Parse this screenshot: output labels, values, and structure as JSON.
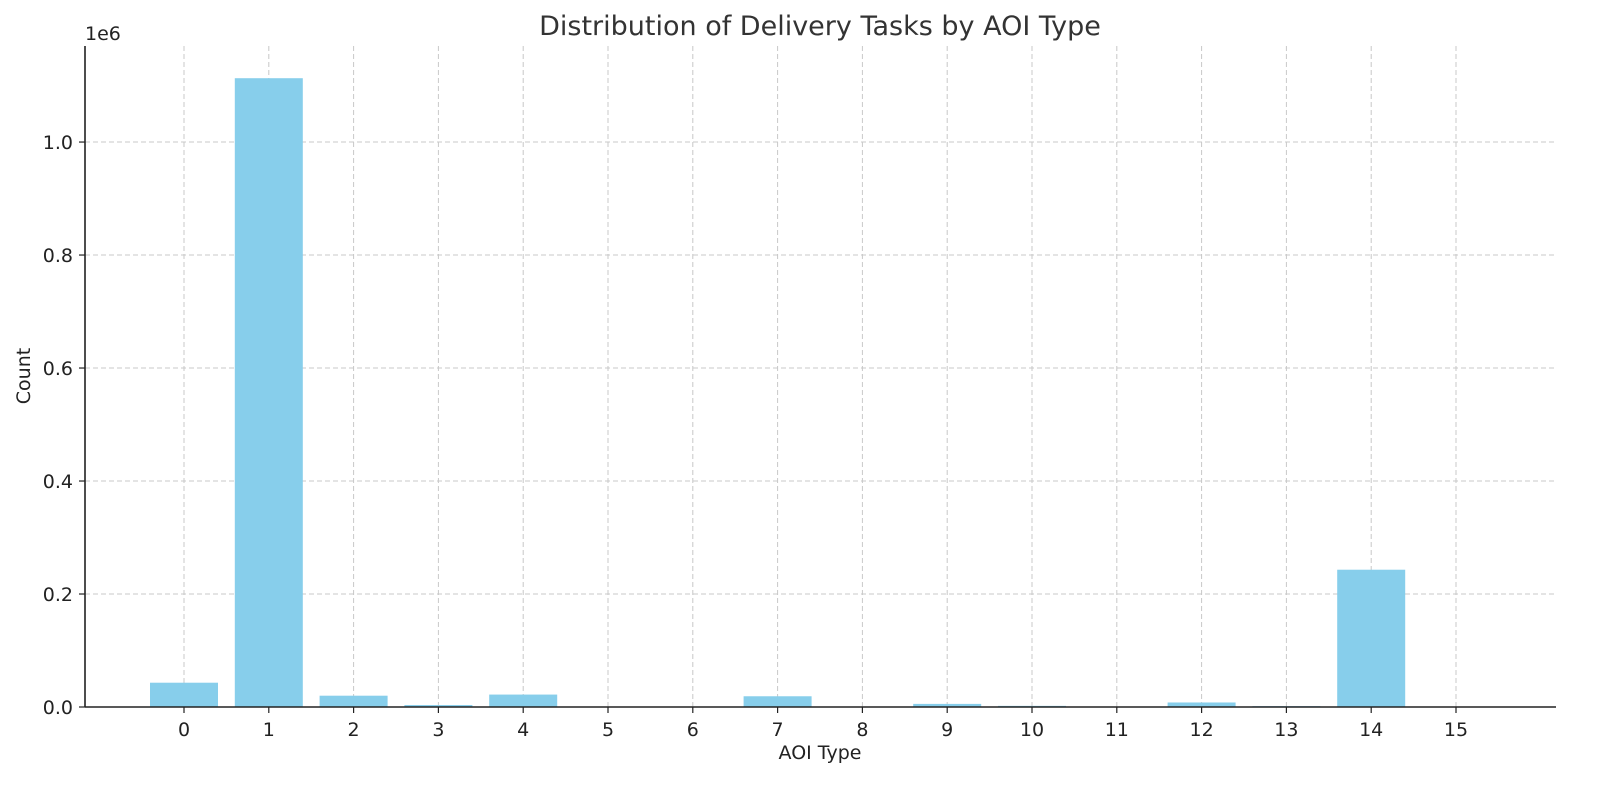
{
  "chart_data": {
    "type": "bar",
    "title": "Distribution of Delivery Tasks by AOI Type",
    "xlabel": "AOI Type",
    "ylabel": "Count",
    "y_multiplier": "1e6",
    "categories": [
      "0",
      "1",
      "2",
      "3",
      "4",
      "5",
      "6",
      "7",
      "8",
      "9",
      "10",
      "11",
      "12",
      "13",
      "14",
      "15"
    ],
    "values": [
      43000,
      1113000,
      20000,
      3500,
      22000,
      200,
      300,
      19000,
      300,
      5500,
      2000,
      300,
      8000,
      1500,
      243000,
      300
    ],
    "ylim": [
      0,
      1170000
    ],
    "yticks": [
      0,
      200000,
      400000,
      600000,
      800000,
      1000000
    ],
    "ytick_labels": [
      "0.0",
      "0.2",
      "0.4",
      "0.6",
      "0.8",
      "1.0"
    ],
    "bar_color": "#87ceeb",
    "grid": true,
    "legend": "none"
  }
}
